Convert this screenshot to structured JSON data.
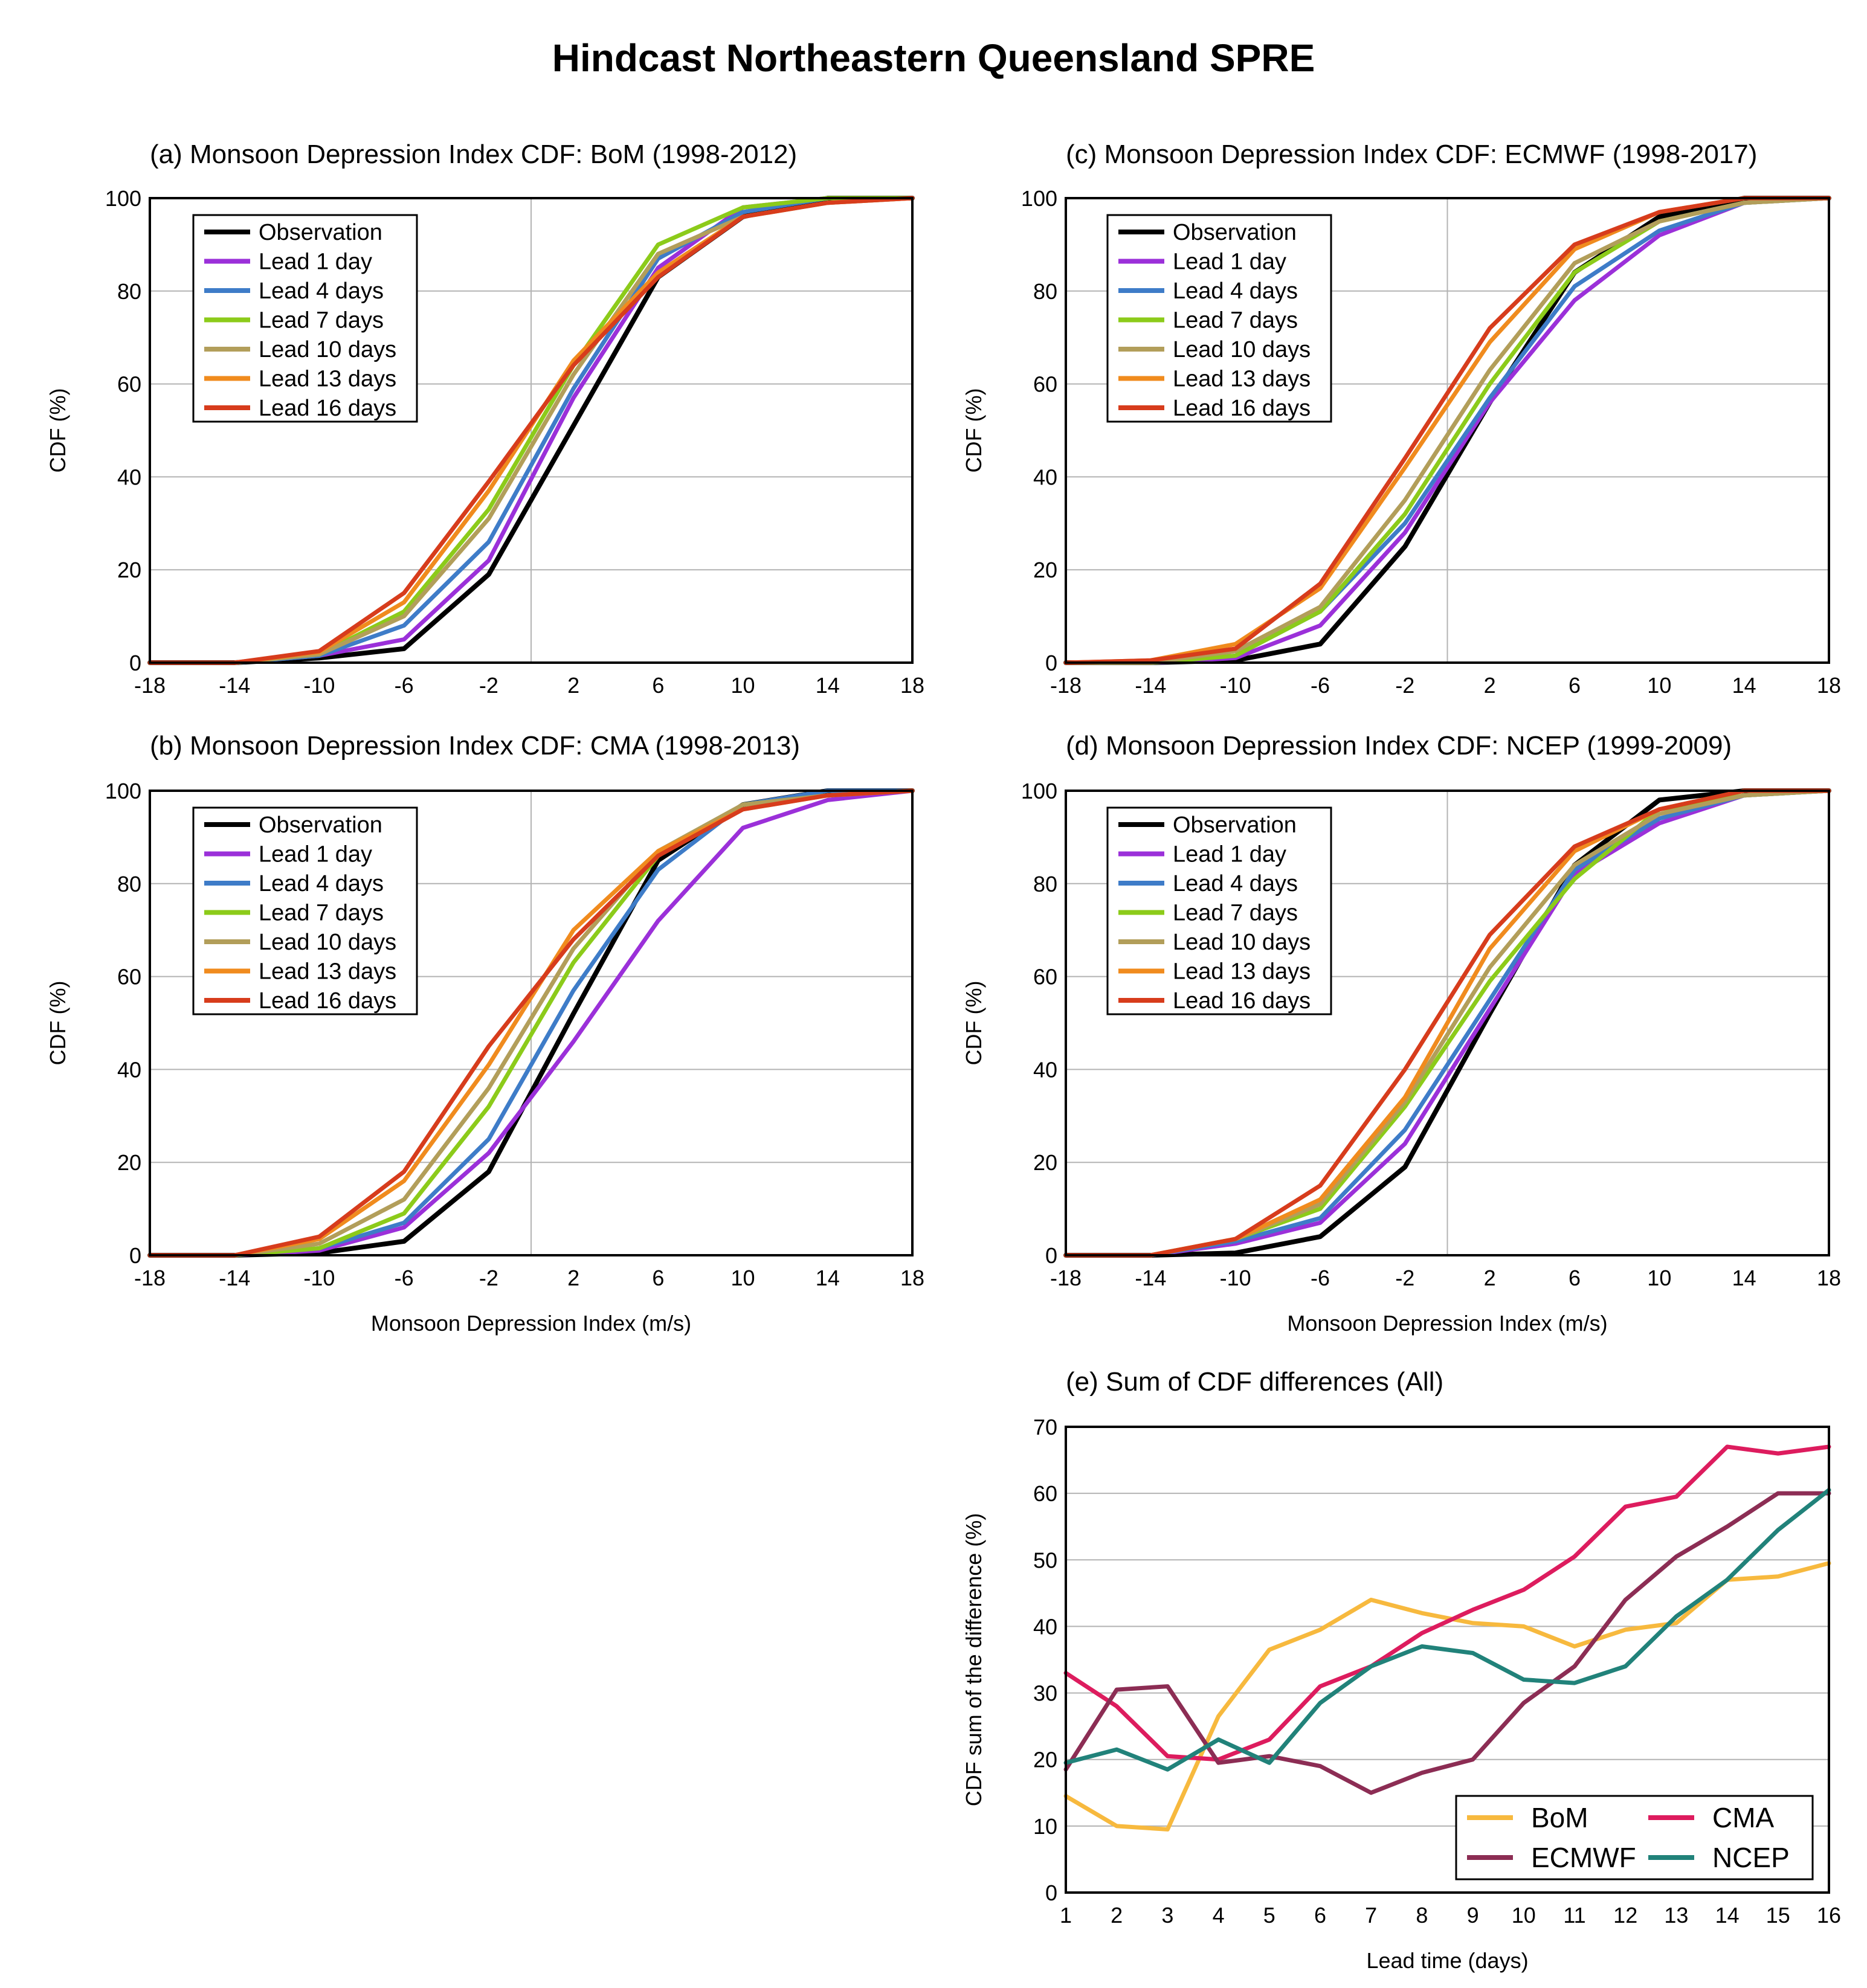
{
  "figure_title": "Hindcast Northeastern Queensland SPRE",
  "chart_data": [
    {
      "id": "a",
      "type": "line",
      "title": "(a) Monsoon Depression Index CDF: BoM (1998-2012)",
      "xlabel": "",
      "ylabel": "CDF (%)",
      "xlim": [
        -18,
        18
      ],
      "ylim": [
        0,
        100
      ],
      "xticks": [
        -18,
        -14,
        -10,
        -6,
        -2,
        2,
        6,
        10,
        14,
        18
      ],
      "yticks": [
        0,
        20,
        40,
        60,
        80,
        100
      ],
      "grid": true,
      "legend_position": "top-left",
      "x": [
        -18,
        -14,
        -10,
        -6,
        -2,
        2,
        6,
        10,
        14,
        18
      ],
      "series": [
        {
          "name": "Observation",
          "color": "#000000",
          "values": [
            0,
            0,
            1,
            3,
            19,
            51,
            83,
            96,
            100,
            100
          ]
        },
        {
          "name": "Lead  1 day",
          "color": "#9b30d9",
          "values": [
            0,
            0,
            1.5,
            5,
            22,
            57,
            85,
            98,
            100,
            100
          ]
        },
        {
          "name": "Lead  4 days",
          "color": "#3e7cc8",
          "values": [
            0,
            0,
            1.5,
            8,
            26,
            59,
            87,
            97,
            100,
            100
          ]
        },
        {
          "name": "Lead  7 days",
          "color": "#8ccb1a",
          "values": [
            0,
            0,
            1.8,
            11,
            33,
            64,
            90,
            98,
            100,
            100
          ]
        },
        {
          "name": "Lead 10 days",
          "color": "#b29e5a",
          "values": [
            0,
            0,
            1.8,
            10,
            31,
            62,
            88,
            96,
            99,
            100
          ]
        },
        {
          "name": "Lead 13 days",
          "color": "#f08b1e",
          "values": [
            0,
            0,
            2.3,
            13,
            37,
            65,
            84,
            96,
            99,
            100
          ]
        },
        {
          "name": "Lead 16 days",
          "color": "#d73c1c",
          "values": [
            0,
            0,
            2.5,
            15,
            39,
            64,
            83,
            96,
            99,
            100
          ]
        }
      ]
    },
    {
      "id": "b",
      "type": "line",
      "title": "(b) Monsoon Depression Index CDF: CMA (1998-2013)",
      "xlabel": "Monsoon Depression Index (m/s)",
      "ylabel": "CDF (%)",
      "xlim": [
        -18,
        18
      ],
      "ylim": [
        0,
        100
      ],
      "xticks": [
        -18,
        -14,
        -10,
        -6,
        -2,
        2,
        6,
        10,
        14,
        18
      ],
      "yticks": [
        0,
        20,
        40,
        60,
        80,
        100
      ],
      "grid": true,
      "legend_position": "top-left",
      "x": [
        -18,
        -14,
        -10,
        -6,
        -2,
        2,
        6,
        10,
        14,
        18
      ],
      "series": [
        {
          "name": "Observation",
          "color": "#000000",
          "values": [
            0,
            0,
            0.5,
            3,
            18,
            52,
            85,
            97,
            100,
            100
          ]
        },
        {
          "name": "Lead  1 day",
          "color": "#9b30d9",
          "values": [
            0,
            0,
            1,
            6,
            22,
            46,
            72,
            92,
            98,
            100
          ]
        },
        {
          "name": "Lead  4 days",
          "color": "#3e7cc8",
          "values": [
            0,
            0,
            1.5,
            7,
            25,
            57,
            83,
            97,
            100,
            100
          ]
        },
        {
          "name": "Lead  7 days",
          "color": "#8ccb1a",
          "values": [
            0,
            0,
            1.5,
            9,
            32,
            63,
            86,
            97,
            99,
            100
          ]
        },
        {
          "name": "Lead 10 days",
          "color": "#b29e5a",
          "values": [
            0,
            0,
            2.5,
            12,
            36,
            66,
            87,
            97,
            99,
            100
          ]
        },
        {
          "name": "Lead 13 days",
          "color": "#f08b1e",
          "values": [
            0,
            0,
            3.5,
            16,
            41,
            70,
            87,
            96,
            99,
            100
          ]
        },
        {
          "name": "Lead 16 days",
          "color": "#d73c1c",
          "values": [
            0,
            0,
            4,
            18,
            45,
            68,
            86,
            96,
            99,
            100
          ]
        }
      ]
    },
    {
      "id": "c",
      "type": "line",
      "title": "(c) Monsoon Depression Index CDF: ECMWF (1998-2017)",
      "xlabel": "",
      "ylabel": "CDF (%)",
      "xlim": [
        -18,
        18
      ],
      "ylim": [
        0,
        100
      ],
      "xticks": [
        -18,
        -14,
        -10,
        -6,
        -2,
        2,
        6,
        10,
        14,
        18
      ],
      "yticks": [
        0,
        20,
        40,
        60,
        80,
        100
      ],
      "grid": true,
      "legend_position": "top-left",
      "x": [
        -18,
        -14,
        -10,
        -6,
        -2,
        2,
        6,
        10,
        14,
        18
      ],
      "series": [
        {
          "name": "Observation",
          "color": "#000000",
          "values": [
            0,
            0,
            0.5,
            4,
            25,
            56,
            84,
            96,
            100,
            100
          ]
        },
        {
          "name": "Lead  1 day",
          "color": "#9b30d9",
          "values": [
            0,
            0,
            1,
            8,
            28,
            56,
            78,
            92,
            99,
            100
          ]
        },
        {
          "name": "Lead  4 days",
          "color": "#3e7cc8",
          "values": [
            0,
            0,
            1.5,
            11,
            30,
            57,
            81,
            93,
            99,
            100
          ]
        },
        {
          "name": "Lead  7 days",
          "color": "#8ccb1a",
          "values": [
            0,
            0,
            1.5,
            11,
            32,
            60,
            84,
            95,
            99,
            100
          ]
        },
        {
          "name": "Lead 10 days",
          "color": "#b29e5a",
          "values": [
            0,
            0,
            2.5,
            12,
            35,
            63,
            86,
            95,
            99,
            100
          ]
        },
        {
          "name": "Lead 13 days",
          "color": "#f08b1e",
          "values": [
            0,
            0.5,
            4,
            16,
            42,
            69,
            89,
            97,
            100,
            100
          ]
        },
        {
          "name": "Lead 16 days",
          "color": "#d73c1c",
          "values": [
            0,
            0.5,
            3,
            17,
            44,
            72,
            90,
            97,
            100,
            100
          ]
        }
      ]
    },
    {
      "id": "d",
      "type": "line",
      "title": "(d) Monsoon Depression Index CDF: NCEP (1999-2009)",
      "xlabel": "Monsoon Depression Index (m/s)",
      "ylabel": "CDF (%)",
      "xlim": [
        -18,
        18
      ],
      "ylim": [
        0,
        100
      ],
      "xticks": [
        -18,
        -14,
        -10,
        -6,
        -2,
        2,
        6,
        10,
        14,
        18
      ],
      "yticks": [
        0,
        20,
        40,
        60,
        80,
        100
      ],
      "grid": true,
      "legend_position": "top-left",
      "x": [
        -18,
        -14,
        -10,
        -6,
        -2,
        2,
        6,
        10,
        14,
        18
      ],
      "series": [
        {
          "name": "Observation",
          "color": "#000000",
          "values": [
            0,
            0,
            0.5,
            4,
            19,
            52,
            84,
            98,
            100,
            100
          ]
        },
        {
          "name": "Lead  1 day",
          "color": "#9b30d9",
          "values": [
            0,
            0,
            2.5,
            7,
            24,
            53,
            82,
            93,
            99,
            100
          ]
        },
        {
          "name": "Lead  4 days",
          "color": "#3e7cc8",
          "values": [
            0,
            0,
            3,
            8,
            27,
            55,
            83,
            94,
            99,
            100
          ]
        },
        {
          "name": "Lead  7 days",
          "color": "#8ccb1a",
          "values": [
            0,
            0,
            3.5,
            10,
            32,
            59,
            81,
            96,
            99,
            100
          ]
        },
        {
          "name": "Lead 10 days",
          "color": "#b29e5a",
          "values": [
            0,
            0,
            3.5,
            11,
            33,
            62,
            84,
            95,
            99,
            100
          ]
        },
        {
          "name": "Lead 13 days",
          "color": "#f08b1e",
          "values": [
            0,
            0,
            3.5,
            12,
            34,
            66,
            87,
            96,
            100,
            100
          ]
        },
        {
          "name": "Lead 16 days",
          "color": "#d73c1c",
          "values": [
            0,
            0,
            3.5,
            15,
            40,
            69,
            88,
            96,
            100,
            100
          ]
        }
      ]
    },
    {
      "id": "e",
      "type": "line",
      "title": "(e) Sum of CDF differences (All)",
      "xlabel": "Lead time (days)",
      "ylabel": "CDF sum of the difference (%)",
      "xlim": [
        1,
        16
      ],
      "ylim": [
        0,
        70
      ],
      "xticks": [
        1,
        2,
        3,
        4,
        5,
        6,
        7,
        8,
        9,
        10,
        11,
        12,
        13,
        14,
        15,
        16
      ],
      "yticks": [
        0,
        10,
        20,
        30,
        40,
        50,
        60,
        70
      ],
      "grid": true,
      "legend_position": "bottom-right",
      "x": [
        1,
        2,
        3,
        4,
        5,
        6,
        7,
        8,
        9,
        10,
        11,
        12,
        13,
        14,
        15,
        16
      ],
      "series": [
        {
          "name": "BoM",
          "color": "#f7b93e",
          "values": [
            14.5,
            10,
            9.5,
            26.5,
            36.5,
            39.5,
            44,
            42,
            40.5,
            40,
            37,
            39.5,
            40.5,
            47,
            47.5,
            49.5
          ]
        },
        {
          "name": "CMA",
          "color": "#dd1c5e",
          "values": [
            33,
            28,
            20.5,
            20,
            23,
            31,
            34,
            39,
            42.5,
            45.5,
            50.5,
            58,
            59.5,
            67,
            66,
            67
          ]
        },
        {
          "name": "ECMWF",
          "color": "#8c2d54",
          "values": [
            18.5,
            30.5,
            31,
            19.5,
            20.5,
            19,
            15,
            18,
            20,
            28.5,
            34,
            44,
            50.5,
            55,
            60,
            60
          ]
        },
        {
          "name": "NCEP",
          "color": "#21827a",
          "values": [
            19.5,
            21.5,
            18.5,
            23,
            19.5,
            28.5,
            34,
            37,
            36,
            32,
            31.5,
            34,
            41.5,
            47,
            54.5,
            60.5
          ]
        }
      ]
    }
  ]
}
